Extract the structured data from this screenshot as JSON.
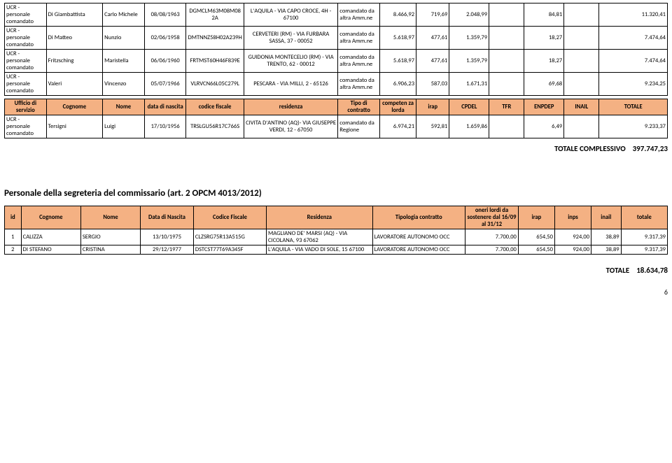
{
  "table1": {
    "rows": [
      {
        "ufficio": "UCR - personale comandato",
        "cognome": "Di Giambattista",
        "nome": "Carlo Michele",
        "nascita": "08/08/1963",
        "cf": "DGMCLM63M08M082A",
        "residenza": "L'AQUILA - VIA CAPO CROCE, 4H - 67100",
        "tipo": "comandato da altra Amm.ne",
        "comp": "8.466,92",
        "irap": "719,69",
        "cpdel": "2.048,99",
        "tfr": "",
        "enpdep": "84,81",
        "inail": "",
        "totale": "11.320,41"
      },
      {
        "ufficio": "UCR - personale comandato",
        "cognome": "Di Matteo",
        "nome": "Nunzio",
        "nascita": "02/06/1958",
        "cf": "DMTNNZ58H02A239H",
        "residenza": "CERVETERI (RM) - VIA FURBARA SASSA, 37 - 00052",
        "tipo": "comandato da altra Amm.ne",
        "comp": "5.618,97",
        "irap": "477,61",
        "cpdel": "1.359,79",
        "tfr": "",
        "enpdep": "18,27",
        "inail": "",
        "totale": "7.474,64"
      },
      {
        "ufficio": "UCR - personale comandato",
        "cognome": "Fritzsching",
        "nome": "Maristella",
        "nascita": "06/06/1960",
        "cf": "FRTMST60H46F839E",
        "residenza": "GUIDONIA MONTECELIO (RM) - VIA TRENTO, 62 - 00012",
        "tipo": "comandato da altra Amm.ne",
        "comp": "5.618,97",
        "irap": "477,61",
        "cpdel": "1.359,79",
        "tfr": "",
        "enpdep": "18,27",
        "inail": "",
        "totale": "7.474,64"
      },
      {
        "ufficio": "UCR - personale comandato",
        "cognome": "Valeri",
        "nome": "Vincenzo",
        "nascita": "05/07/1966",
        "cf": "VLRVCN66L05C279L",
        "residenza": "PESCARA - VIA MILLI, 2 - 65126",
        "tipo": "comandato da altra Amm.ne",
        "comp": "6.906,23",
        "irap": "587,03",
        "cpdel": "1.671,31",
        "tfr": "",
        "enpdep": "69,68",
        "inail": "",
        "totale": "9.234,25"
      }
    ]
  },
  "table2": {
    "headers": {
      "ufficio": "Ufficio di servizio",
      "cognome": "Cognome",
      "nome": "Nome",
      "nascita": "data di nascita",
      "cf": "codice fiscale",
      "residenza": "residenza",
      "tipo": "Tipo di contratto",
      "comp": "competen za lorda",
      "irap": "irap",
      "cpdel": "CPDEL",
      "tfr": "TFR",
      "enpdep": "ENPDEP",
      "inail": "INAIL",
      "totale": "TOTALE"
    },
    "rows": [
      {
        "ufficio": "UCR - personale comandato",
        "cognome": "Tersigni",
        "nome": "Luigi",
        "nascita": "17/10/1956",
        "cf": "TRSLGU56R17C766S",
        "residenza": "CIVITA D'ANTINO (AQ)- VIA GIUSEPPE VERDI, 12 - 67050",
        "tipo": "comandato da Regione",
        "comp": "6.974,21",
        "irap": "592,81",
        "cpdel": "1.659,86",
        "tfr": "",
        "enpdep": "6,49",
        "inail": "",
        "totale": "9.233,37"
      }
    ]
  },
  "tot1": {
    "label": "TOTALE COMPLESSIVO",
    "value": "397.747,23"
  },
  "section_title": "Personale della segreteria del commissario (art. 2 OPCM 4013/2012)",
  "table3": {
    "headers": {
      "id": "id",
      "cognome": "Cognome",
      "nome": "Nome",
      "nascita": "Data di Nascita",
      "cf": "Codice Fiscale",
      "residenza": "Residenza",
      "tipo": "Tipologia contratto",
      "oneri": "oneri lordi da sostenere dal 16/09 al 31/12",
      "irap": "irap",
      "inps": "inps",
      "inail": "inail",
      "totale": "totale"
    },
    "rows": [
      {
        "id": "1",
        "cognome": "CALIZZA",
        "nome": "SERGIO",
        "nascita": "13/10/1975",
        "cf": "CLZSRG75R13A515G",
        "residenza": "MAGLIANO DE' MARSI (AQ) - VIA CICOLANA, 93 67062",
        "tipo": "LAVORATORE AUTONOMO OCC",
        "oneri": "7.700,00",
        "irap": "654,50",
        "inps": "924,00",
        "inail": "38,89",
        "totale": "9.317,39"
      },
      {
        "id": "2",
        "cognome": "DI STEFANO",
        "nome": "CRISTINA",
        "nascita": "29/12/1977",
        "cf": "DSTCST77T69A345F",
        "residenza": "L'AQUILA - VIA VADO DI SOLE, 15 67100",
        "tipo": "LAVORATORE AUTONOMO OCC",
        "oneri": "7.700,00",
        "irap": "654,50",
        "inps": "924,00",
        "inail": "38,89",
        "totale": "9.317,39"
      }
    ]
  },
  "tot2": {
    "label": "TOTALE",
    "value": "18.634,78"
  },
  "page_number": "6"
}
